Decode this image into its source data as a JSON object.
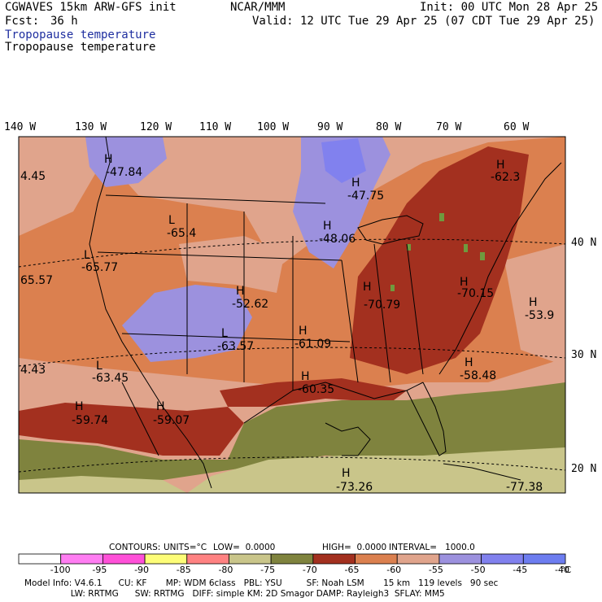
{
  "header": {
    "model": "CGWAVES 15km ARW-GFS init",
    "org": "NCAR/MMM",
    "init": "Init: 00 UTC Mon 28 Apr 25",
    "fcst_label": "Fcst:",
    "fcst_value": "36 h",
    "valid": "Valid: 12 UTC Tue 29 Apr 25 (07 CDT Tue 29 Apr 25)",
    "field_title_blue": "Tropopause temperature",
    "field_title_black": "Tropopause temperature"
  },
  "longitudes": [
    "140 W",
    "130 W",
    "120 W",
    "110 W",
    "100 W",
    "90 W",
    "80 W",
    "70 W",
    "60 W"
  ],
  "latitudes": [
    "40 N",
    "30 N",
    "20 N"
  ],
  "highs_lows": [
    {
      "mark": "H",
      "value": "-47.84"
    },
    {
      "mark": "H",
      "value": "-47.75"
    },
    {
      "mark": "H",
      "value": "-62.3"
    },
    {
      "mark": "L",
      "value": "-65.4"
    },
    {
      "mark": "H",
      "value": "-48.06"
    },
    {
      "mark": "L",
      "value": "-65.77"
    },
    {
      "mark": "H",
      "value": "-52.62"
    },
    {
      "mark": "H",
      "value": "-70.79"
    },
    {
      "mark": "H",
      "value": "-70.15"
    },
    {
      "mark": "H",
      "value": "-53.9"
    },
    {
      "mark": "L",
      "value": "-63.57"
    },
    {
      "mark": "H",
      "value": "-61.09"
    },
    {
      "mark": "H",
      "value": "-58.48"
    },
    {
      "mark": "L",
      "value": "-63.45"
    },
    {
      "mark": "H",
      "value": "-60.35"
    },
    {
      "mark": "H",
      "value": "-59.74"
    },
    {
      "mark": "H",
      "value": "-59.07"
    },
    {
      "mark": "H",
      "value": "-73.26"
    },
    {
      "mark": "",
      "value": "-77.38"
    },
    {
      "mark": "",
      "value": "4.45"
    },
    {
      "mark": "",
      "value": "65.57"
    },
    {
      "mark": "",
      "value": "4.43"
    }
  ],
  "contours_line": {
    "label": "CONTOURS:",
    "units": "UNITS=°C",
    "low": "LOW=  0.0000",
    "high": "HIGH=  0.0000",
    "interval": "INTERVAL=   1000.0"
  },
  "colorbar": {
    "colors": [
      "#ffffff",
      "#ff7df2",
      "#ff50d8",
      "#fdfd78",
      "#ff8282",
      "#c9c58a",
      "#7f833e",
      "#a3301f",
      "#db804f",
      "#e0a48c",
      "#9c91de",
      "#8181ee",
      "#6d7df0"
    ],
    "labels": [
      "-100",
      "-95",
      "-90",
      "-85",
      "-80",
      "-75",
      "-70",
      "-65",
      "-60",
      "-55",
      "-50",
      "-45",
      "-40"
    ],
    "unit": "°C"
  },
  "footer": {
    "line1": "Model Info: V4.6.1      CU: KF       MP: WDM 6class   PBL: YSU         SF: Noah LSM       15 km   119 levels   90 sec",
    "line2": "                 LW: RRTMG      SW: RRTMG   DIFF: simple KM: 2D Smagor DAMP: Rayleigh3  SFLAY: MM5"
  },
  "map_colors": {
    "ocean_tan": "#e0a48c",
    "orange": "#db804f",
    "darkred": "#a3301f",
    "blue": "#9c91de",
    "olive": "#7f833e",
    "khaki": "#c9c58a",
    "green_speck": "#6f9a3e"
  }
}
